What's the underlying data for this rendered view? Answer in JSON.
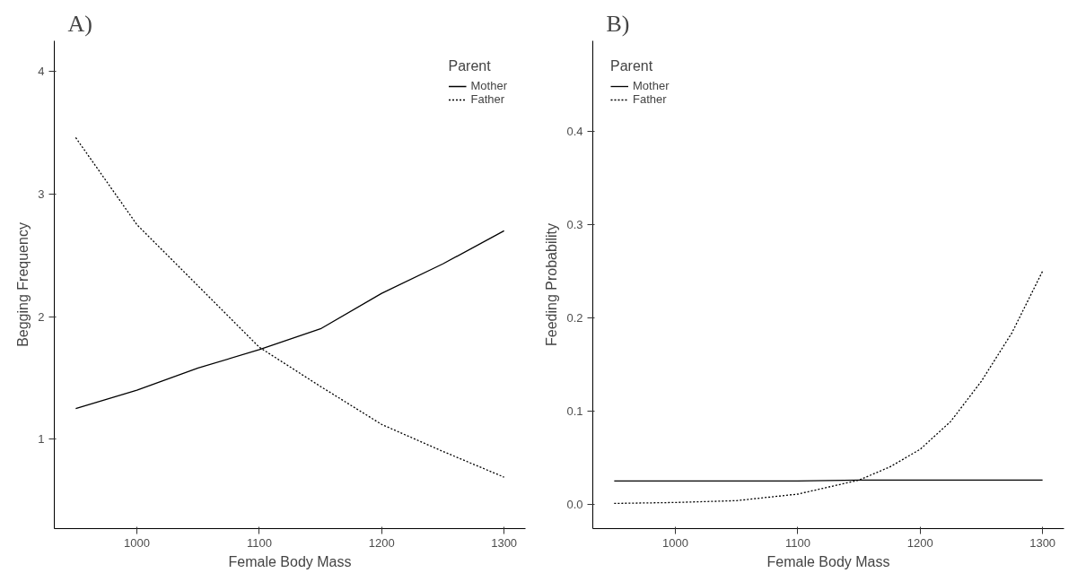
{
  "chart_data": [
    {
      "type": "line",
      "title": "A)",
      "xlabel": "Female Body Mass",
      "ylabel": "Begging Frequency",
      "legend_title": "Parent",
      "legend": "top right",
      "grid": false,
      "x": [
        950,
        1000,
        1050,
        1100,
        1150,
        1200,
        1250,
        1300
      ],
      "xlim": [
        932.5,
        1317.5
      ],
      "xticks": [
        1000,
        1100,
        1200,
        1300
      ],
      "ylim": [
        0.27,
        4.25
      ],
      "yticks": [
        1,
        2,
        3,
        4
      ],
      "series": [
        {
          "name": "Mother",
          "color": "#000000",
          "line_style": "solid",
          "values": [
            1.25,
            1.4,
            1.58,
            1.73,
            1.9,
            2.19,
            2.43,
            2.7
          ]
        },
        {
          "name": "Father",
          "color": "#000000",
          "line_style": "dotted",
          "values": [
            3.46,
            2.75,
            2.25,
            1.75,
            1.43,
            1.12,
            0.9,
            0.69
          ]
        }
      ]
    },
    {
      "type": "line",
      "title": "B)",
      "xlabel": "Female Body Mass",
      "ylabel": "Feeding Probability",
      "legend_title": "Parent",
      "legend": "top left",
      "grid": false,
      "x": [
        950,
        1000,
        1050,
        1100,
        1150,
        1175,
        1200,
        1225,
        1250,
        1275,
        1300
      ],
      "xlim": [
        932.5,
        1317.5
      ],
      "xticks": [
        1000,
        1100,
        1200,
        1300
      ],
      "ylim": [
        -0.026,
        0.497
      ],
      "yticks": [
        {
          "value": 0,
          "label": "0.0"
        },
        0.1,
        0.2,
        0.3,
        0.4
      ],
      "series": [
        {
          "name": "Mother",
          "color": "#000000",
          "line_style": "solid",
          "values": [
            0.025,
            0.025,
            0.025,
            0.025,
            0.026,
            0.026,
            0.026,
            0.026,
            0.026,
            0.026,
            0.026
          ]
        },
        {
          "name": "Father",
          "color": "#000000",
          "line_style": "dotted",
          "values": [
            0.001,
            0.002,
            0.004,
            0.011,
            0.026,
            0.04,
            0.059,
            0.089,
            0.132,
            0.184,
            0.25
          ]
        }
      ]
    }
  ]
}
